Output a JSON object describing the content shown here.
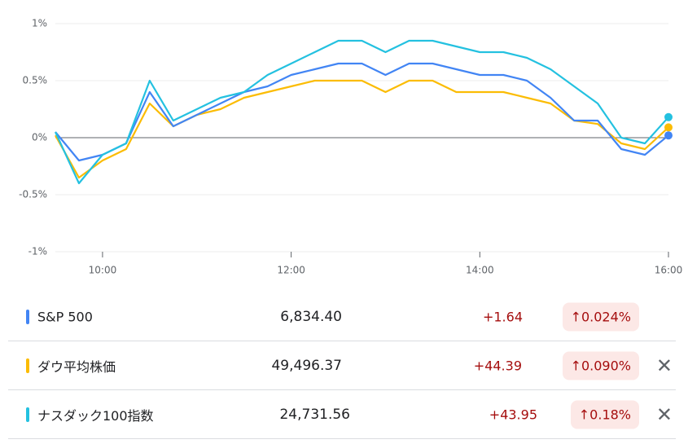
{
  "chart_data": {
    "type": "line",
    "x": [
      9.5,
      9.75,
      10,
      10.25,
      10.5,
      10.75,
      11,
      11.25,
      11.5,
      11.75,
      12,
      12.25,
      12.5,
      12.75,
      13,
      13.25,
      13.5,
      13.75,
      14,
      14.25,
      14.5,
      14.75,
      15,
      15.25,
      15.5,
      15.75,
      16
    ],
    "xlim": [
      9.5,
      16
    ],
    "xticks": [
      {
        "value": 10,
        "label": "10:00"
      },
      {
        "value": 12,
        "label": "12:00"
      },
      {
        "value": 14,
        "label": "14:00"
      },
      {
        "value": 16,
        "label": "16:00"
      }
    ],
    "ylim": [
      -1,
      1
    ],
    "yticks": [
      {
        "value": -1,
        "label": "-1%"
      },
      {
        "value": -0.5,
        "label": "-0.5%"
      },
      {
        "value": 0,
        "label": "0%"
      },
      {
        "value": 0.5,
        "label": "0.5%"
      },
      {
        "value": 1,
        "label": "1%"
      }
    ],
    "grid": true,
    "series": [
      {
        "name": "S&P 500",
        "color": "#4285f4",
        "values": [
          0.05,
          -0.2,
          -0.15,
          -0.05,
          0.4,
          0.1,
          0.2,
          0.3,
          0.4,
          0.45,
          0.55,
          0.6,
          0.65,
          0.65,
          0.55,
          0.65,
          0.65,
          0.6,
          0.55,
          0.55,
          0.5,
          0.35,
          0.15,
          0.15,
          -0.1,
          -0.15,
          0.02
        ]
      },
      {
        "name": "ダウ平均株価",
        "color": "#fbbc04",
        "values": [
          0.02,
          -0.35,
          -0.2,
          -0.1,
          0.3,
          0.1,
          0.2,
          0.25,
          0.35,
          0.4,
          0.45,
          0.5,
          0.5,
          0.5,
          0.4,
          0.5,
          0.5,
          0.4,
          0.4,
          0.4,
          0.35,
          0.3,
          0.15,
          0.12,
          -0.05,
          -0.1,
          0.09
        ]
      },
      {
        "name": "ナスダック100指数",
        "color": "#24c1e0",
        "values": [
          0.05,
          -0.4,
          -0.15,
          -0.05,
          0.5,
          0.15,
          0.25,
          0.35,
          0.4,
          0.55,
          0.65,
          0.75,
          0.85,
          0.85,
          0.75,
          0.85,
          0.85,
          0.8,
          0.75,
          0.75,
          0.7,
          0.6,
          0.45,
          0.3,
          0,
          -0.05,
          0.18
        ]
      }
    ]
  },
  "table": {
    "rows": [
      {
        "price": "6,834.40",
        "change": "+1.64",
        "percent": "0.024%"
      },
      {
        "price": "49,496.37",
        "change": "+44.39",
        "percent": "0.090%"
      },
      {
        "price": "24,731.56",
        "change": "+43.95",
        "percent": "0.18%"
      }
    ]
  }
}
